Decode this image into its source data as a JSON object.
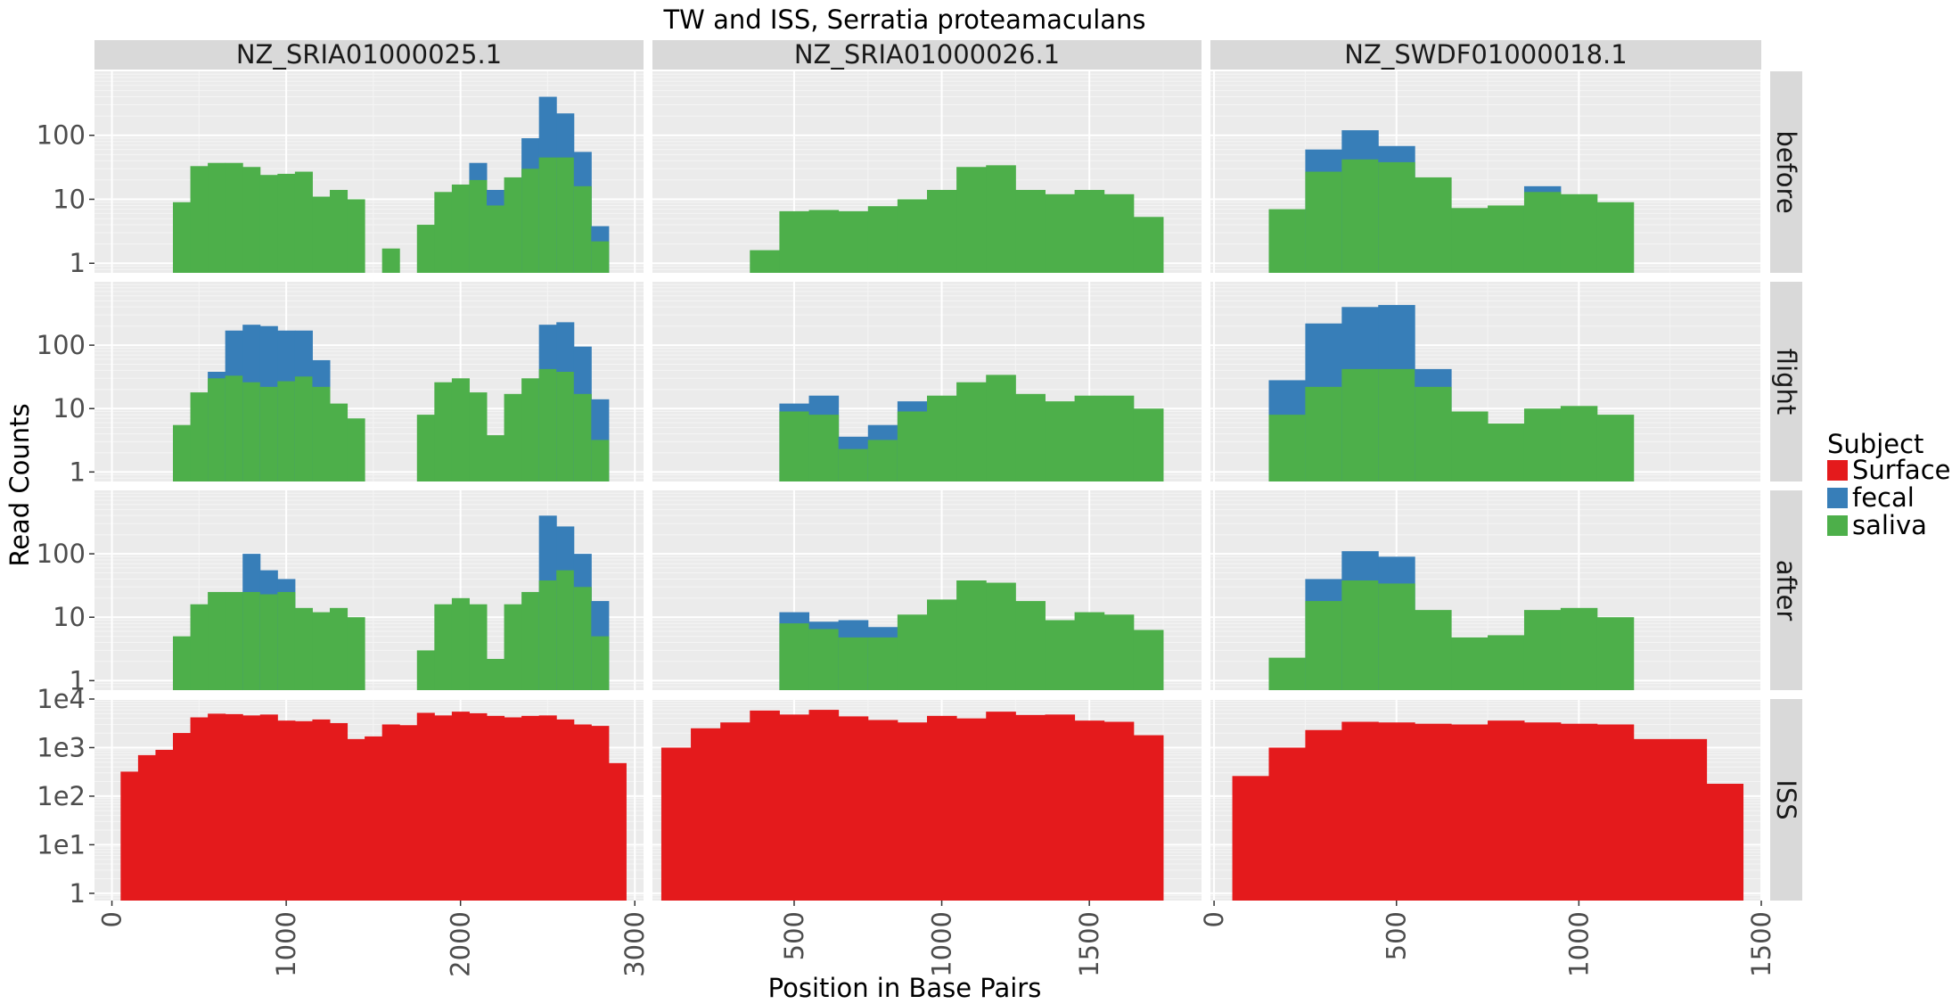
{
  "chart_data": {
    "type": "bar",
    "title": "TW and ISS, Serratia proteamaculans",
    "xlabel": "Position in Base Pairs",
    "ylabel": "Read Counts",
    "y_scale": "log10",
    "legend": {
      "title": "Subject",
      "placement": "right",
      "entries": [
        {
          "label": "Surface",
          "color": "#E41A1C"
        },
        {
          "label": "fecal",
          "color": "#377EB8"
        },
        {
          "label": "saliva",
          "color": "#4DAF4A"
        }
      ]
    },
    "columns": [
      {
        "label": "NZ_SRIA01000025.1",
        "xlim": [
          -100,
          3050
        ],
        "ticks": [
          0,
          1000,
          2000,
          3000
        ],
        "tick_labels": [
          "0",
          "1000",
          "2000",
          "3000"
        ]
      },
      {
        "label": "NZ_SRIA01000026.1",
        "xlim": [
          20,
          1880
        ],
        "ticks": [
          500,
          1000,
          1500
        ],
        "tick_labels": [
          "500",
          "1000",
          "1500"
        ]
      },
      {
        "label": "NZ_SWDF01000018.1",
        "xlim": [
          -10,
          1500
        ],
        "ticks": [
          0,
          500,
          1000,
          1500
        ],
        "tick_labels": [
          "0",
          "500",
          "1000",
          "1500"
        ]
      }
    ],
    "rows": [
      {
        "label": "before",
        "yrange_log10": [
          -0.15,
          3.0
        ],
        "ticks": [
          1,
          10,
          100
        ],
        "tick_labels": [
          "1",
          "10",
          "100"
        ]
      },
      {
        "label": "flight",
        "yrange_log10": [
          -0.15,
          3.0
        ],
        "ticks": [
          1,
          10,
          100
        ],
        "tick_labels": [
          "1",
          "10",
          "100"
        ]
      },
      {
        "label": "after",
        "yrange_log10": [
          -0.15,
          3.0
        ],
        "ticks": [
          1,
          10,
          100
        ],
        "tick_labels": [
          "1",
          "10",
          "100"
        ]
      },
      {
        "label": "ISS",
        "yrange_log10": [
          -0.15,
          4.0
        ],
        "ticks": [
          1,
          10,
          100,
          1000,
          10000
        ],
        "tick_labels": [
          "1",
          "1e1",
          "1e2",
          "1e3",
          "1e4"
        ]
      }
    ],
    "panels": [
      {
        "row": "before",
        "column": "NZ_SRIA01000025.1",
        "bin_width": 100,
        "x": [
          400,
          500,
          600,
          700,
          800,
          900,
          1000,
          1100,
          1200,
          1300,
          1400,
          1600,
          1800,
          1900,
          2000,
          2100,
          2200,
          2300,
          2400,
          2500,
          2600,
          2700,
          2800
        ],
        "saliva": [
          9,
          33,
          37,
          37,
          32,
          24,
          25,
          27,
          11,
          14,
          10,
          1.7,
          4,
          13,
          17,
          20,
          8,
          22,
          30,
          45,
          45,
          16,
          2.2
        ],
        "total": [
          9,
          33,
          37,
          37,
          32,
          24,
          25,
          27,
          11,
          14,
          10,
          1.7,
          4,
          13,
          17,
          37,
          14,
          22,
          90,
          400,
          220,
          55,
          3.8
        ]
      },
      {
        "row": "before",
        "column": "NZ_SRIA01000026.1",
        "bin_width": 100,
        "x": [
          400,
          500,
          600,
          700,
          800,
          900,
          1000,
          1100,
          1200,
          1300,
          1400,
          1500,
          1600,
          1700
        ],
        "saliva": [
          1.6,
          6.5,
          6.8,
          6.5,
          7.8,
          10,
          14,
          32,
          34,
          14,
          12,
          14,
          12,
          5.3
        ],
        "total": [
          1.6,
          6.5,
          6.8,
          6.5,
          7.8,
          10,
          14,
          32,
          34,
          14,
          12,
          14,
          12,
          5.3
        ]
      },
      {
        "row": "before",
        "column": "NZ_SWDF01000018.1",
        "bin_width": 100,
        "x": [
          200,
          300,
          400,
          500,
          600,
          700,
          800,
          900,
          1000,
          1100
        ],
        "saliva": [
          7,
          27,
          42,
          38,
          22,
          7.3,
          8,
          13,
          12,
          9
        ],
        "total": [
          7,
          60,
          120,
          68,
          22,
          7.3,
          8,
          16,
          12,
          9
        ]
      },
      {
        "row": "flight",
        "column": "NZ_SRIA01000025.1",
        "bin_width": 100,
        "x": [
          400,
          500,
          600,
          700,
          800,
          900,
          1000,
          1100,
          1200,
          1300,
          1400,
          1800,
          1900,
          2000,
          2100,
          2200,
          2300,
          2400,
          2500,
          2600,
          2700,
          2800
        ],
        "saliva": [
          5.5,
          18,
          30,
          33,
          26,
          22,
          27,
          32,
          22,
          12,
          7,
          8,
          26,
          30,
          18,
          3.8,
          17,
          30,
          42,
          38,
          17,
          3.2
        ],
        "total": [
          5.5,
          18,
          38,
          170,
          210,
          200,
          170,
          170,
          58,
          12,
          7,
          8,
          26,
          30,
          18,
          3.8,
          17,
          30,
          210,
          230,
          95,
          14
        ]
      },
      {
        "row": "flight",
        "column": "NZ_SRIA01000026.1",
        "bin_width": 100,
        "x": [
          500,
          600,
          700,
          800,
          900,
          1000,
          1100,
          1200,
          1300,
          1400,
          1500,
          1600,
          1700
        ],
        "saliva": [
          9,
          8,
          2.3,
          3.2,
          9,
          16,
          26,
          34,
          17,
          13,
          16,
          16,
          10
        ],
        "total": [
          12,
          16,
          3.6,
          5.5,
          13,
          16,
          26,
          34,
          17,
          13,
          16,
          16,
          10
        ]
      },
      {
        "row": "flight",
        "column": "NZ_SWDF01000018.1",
        "bin_width": 100,
        "x": [
          200,
          300,
          400,
          500,
          600,
          700,
          800,
          900,
          1000,
          1100
        ],
        "saliva": [
          8,
          22,
          42,
          42,
          22,
          9,
          5.8,
          10,
          11,
          8
        ],
        "total": [
          28,
          220,
          400,
          430,
          42,
          9,
          5.8,
          10,
          11,
          8
        ]
      },
      {
        "row": "after",
        "column": "NZ_SRIA01000025.1",
        "bin_width": 100,
        "x": [
          400,
          500,
          600,
          700,
          800,
          900,
          1000,
          1100,
          1200,
          1300,
          1400,
          1800,
          1900,
          2000,
          2100,
          2200,
          2300,
          2400,
          2500,
          2600,
          2700,
          2800
        ],
        "saliva": [
          5,
          16,
          25,
          25,
          25,
          23,
          25,
          14,
          12,
          14,
          10,
          3,
          16,
          20,
          16,
          2.2,
          16,
          25,
          38,
          55,
          30,
          5
        ],
        "total": [
          5,
          16,
          25,
          25,
          100,
          55,
          40,
          14,
          12,
          14,
          10,
          3,
          16,
          20,
          16,
          2.2,
          16,
          25,
          400,
          270,
          100,
          18
        ]
      },
      {
        "row": "after",
        "column": "NZ_SRIA01000026.1",
        "bin_width": 100,
        "x": [
          500,
          600,
          700,
          800,
          900,
          1000,
          1100,
          1200,
          1300,
          1400,
          1500,
          1600,
          1700
        ],
        "saliva": [
          8,
          6.5,
          4.8,
          4.8,
          11,
          19,
          38,
          35,
          18,
          9,
          12,
          11,
          6.3
        ],
        "total": [
          12,
          8.5,
          9,
          7,
          11,
          19,
          38,
          35,
          18,
          9,
          12,
          11,
          6.3
        ]
      },
      {
        "row": "after",
        "column": "NZ_SWDF01000018.1",
        "bin_width": 100,
        "x": [
          200,
          300,
          400,
          500,
          600,
          700,
          800,
          900,
          1000,
          1100
        ],
        "saliva": [
          2.3,
          18,
          38,
          34,
          13,
          4.8,
          5.2,
          13,
          14,
          10
        ],
        "total": [
          2.3,
          40,
          110,
          90,
          13,
          4.8,
          5.2,
          13,
          14,
          10
        ]
      },
      {
        "row": "ISS",
        "column": "NZ_SRIA01000025.1",
        "bin_width": 100,
        "x": [
          100,
          200,
          300,
          400,
          500,
          600,
          700,
          800,
          900,
          1000,
          1100,
          1200,
          1300,
          1400,
          1500,
          1600,
          1700,
          1800,
          1900,
          2000,
          2100,
          2200,
          2300,
          2400,
          2500,
          2600,
          2700,
          2800,
          2900
        ],
        "surface": [
          320,
          700,
          900,
          2000,
          4200,
          5000,
          4900,
          4600,
          4800,
          3600,
          3500,
          3800,
          3200,
          1500,
          1700,
          3000,
          2900,
          5200,
          4600,
          5500,
          5100,
          4500,
          4200,
          4500,
          4600,
          3800,
          3000,
          2800,
          480
        ]
      },
      {
        "row": "ISS",
        "column": "NZ_SRIA01000026.1",
        "bin_width": 100,
        "x": [
          100,
          200,
          300,
          400,
          500,
          600,
          700,
          800,
          900,
          1000,
          1100,
          1200,
          1300,
          1400,
          1500,
          1600,
          1700
        ],
        "surface": [
          1000,
          2500,
          3300,
          5800,
          4800,
          6000,
          4400,
          3700,
          3300,
          4500,
          4000,
          5500,
          4700,
          4800,
          3600,
          3400,
          1800
        ]
      },
      {
        "row": "ISS",
        "column": "NZ_SWDF01000018.1",
        "bin_width": 100,
        "x": [
          100,
          200,
          300,
          400,
          500,
          600,
          700,
          800,
          900,
          1000,
          1100,
          1200,
          1300,
          1400
        ],
        "surface": [
          260,
          1000,
          2300,
          3400,
          3300,
          3100,
          3000,
          3600,
          3300,
          3100,
          3000,
          1500,
          1500,
          180
        ]
      }
    ]
  }
}
